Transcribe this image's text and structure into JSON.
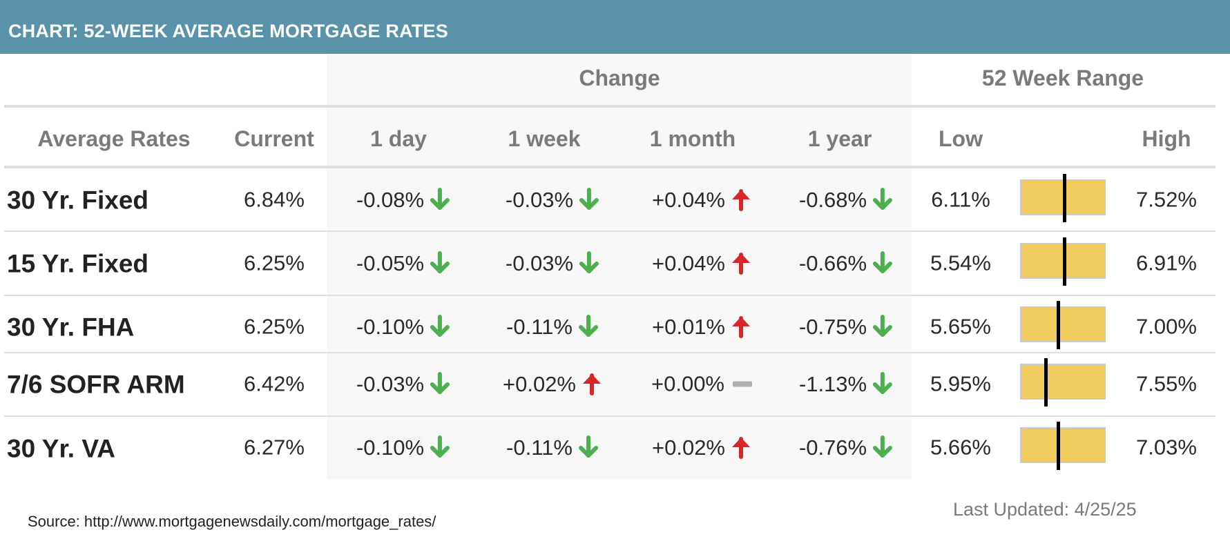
{
  "header": {
    "title": "CHART: 52-WEEK AVERAGE MORTGAGE RATES"
  },
  "groups": {
    "change": "Change",
    "range": "52 Week Range"
  },
  "columns": {
    "average_rates": "Average Rates",
    "current": "Current",
    "day": "1 day",
    "week": "1 week",
    "month": "1 month",
    "year": "1 year",
    "low": "Low",
    "high": "High"
  },
  "colors": {
    "down": "#4caf50",
    "up": "#d9262a",
    "flat": "#b0b0b0",
    "bar": "#eecb5c",
    "header": "#5a93a9"
  },
  "chart_data": {
    "type": "table",
    "title": "CHART: 52-WEEK AVERAGE MORTGAGE RATES",
    "rows": [
      {
        "name": "30 Yr. Fixed",
        "current": "6.84%",
        "current_value": 6.84,
        "day": "-0.08%",
        "day_dir": "down",
        "week": "-0.03%",
        "week_dir": "down",
        "month": "+0.04%",
        "month_dir": "up",
        "year": "-0.68%",
        "year_dir": "down",
        "low": "6.11%",
        "low_value": 6.11,
        "high": "7.52%",
        "high_value": 7.52
      },
      {
        "name": "15 Yr. Fixed",
        "current": "6.25%",
        "current_value": 6.25,
        "day": "-0.05%",
        "day_dir": "down",
        "week": "-0.03%",
        "week_dir": "down",
        "month": "+0.04%",
        "month_dir": "up",
        "year": "-0.66%",
        "year_dir": "down",
        "low": "5.54%",
        "low_value": 5.54,
        "high": "6.91%",
        "high_value": 6.91
      },
      {
        "name": "30 Yr. FHA",
        "current": "6.25%",
        "current_value": 6.25,
        "day": "-0.10%",
        "day_dir": "down",
        "week": "-0.11%",
        "week_dir": "down",
        "month": "+0.01%",
        "month_dir": "up",
        "year": "-0.75%",
        "year_dir": "down",
        "low": "5.65%",
        "low_value": 5.65,
        "high": "7.00%",
        "high_value": 7.0
      },
      {
        "name": "7/6 SOFR ARM",
        "current": "6.42%",
        "current_value": 6.42,
        "day": "-0.03%",
        "day_dir": "down",
        "week": "+0.02%",
        "week_dir": "up",
        "month": "+0.00%",
        "month_dir": "flat",
        "year": "-1.13%",
        "year_dir": "down",
        "low": "5.95%",
        "low_value": 5.95,
        "high": "7.55%",
        "high_value": 7.55
      },
      {
        "name": "30 Yr. VA",
        "current": "6.27%",
        "current_value": 6.27,
        "day": "-0.10%",
        "day_dir": "down",
        "week": "-0.11%",
        "week_dir": "down",
        "month": "+0.02%",
        "month_dir": "up",
        "year": "-0.76%",
        "year_dir": "down",
        "low": "5.66%",
        "low_value": 5.66,
        "high": "7.03%",
        "high_value": 7.03
      }
    ]
  },
  "footer": {
    "source": "Source: http://www.mortgagenewsdaily.com/mortgage_rates/",
    "last_updated": "Last Updated: 4/25/25"
  }
}
